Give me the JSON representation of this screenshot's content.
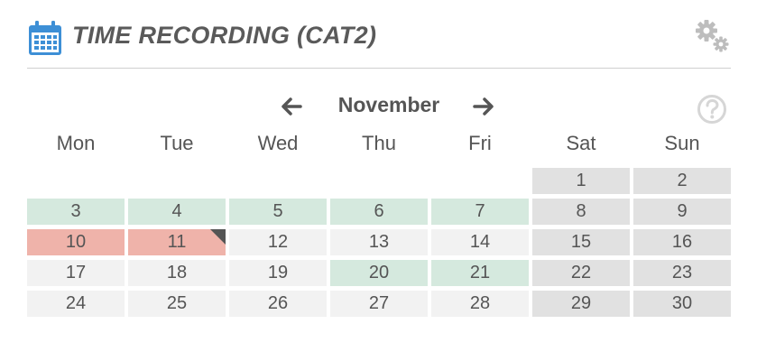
{
  "header": {
    "title": "TIME RECORDING (CAT2)",
    "icon": "calendar-icon",
    "settings_icon": "gear-icon",
    "accent": "#3d8fd6"
  },
  "nav": {
    "month": "November",
    "prev_icon": "arrow-left-icon",
    "next_icon": "arrow-right-icon",
    "help_icon": "help-icon"
  },
  "weekdays": [
    "Mon",
    "Tue",
    "Wed",
    "Thu",
    "Fri",
    "Sat",
    "Sun"
  ],
  "status_colors": {
    "recorded": "#d5e9de",
    "missing": "#efb3aa",
    "workday": "#f2f2f2",
    "weekend": "#e1e1e1"
  },
  "weeks": [
    [
      {
        "day": "",
        "status": "empty"
      },
      {
        "day": "",
        "status": "empty"
      },
      {
        "day": "",
        "status": "empty"
      },
      {
        "day": "",
        "status": "empty"
      },
      {
        "day": "",
        "status": "empty"
      },
      {
        "day": "1",
        "status": "weekend"
      },
      {
        "day": "2",
        "status": "weekend"
      }
    ],
    [
      {
        "day": "3",
        "status": "recorded"
      },
      {
        "day": "4",
        "status": "recorded"
      },
      {
        "day": "5",
        "status": "recorded"
      },
      {
        "day": "6",
        "status": "recorded"
      },
      {
        "day": "7",
        "status": "recorded"
      },
      {
        "day": "8",
        "status": "weekend"
      },
      {
        "day": "9",
        "status": "weekend"
      }
    ],
    [
      {
        "day": "10",
        "status": "missing"
      },
      {
        "day": "11",
        "status": "missing",
        "marker": "corner-flag"
      },
      {
        "day": "12",
        "status": "workday"
      },
      {
        "day": "13",
        "status": "workday"
      },
      {
        "day": "14",
        "status": "workday"
      },
      {
        "day": "15",
        "status": "weekend"
      },
      {
        "day": "16",
        "status": "weekend"
      }
    ],
    [
      {
        "day": "17",
        "status": "workday"
      },
      {
        "day": "18",
        "status": "workday"
      },
      {
        "day": "19",
        "status": "workday"
      },
      {
        "day": "20",
        "status": "recorded"
      },
      {
        "day": "21",
        "status": "recorded"
      },
      {
        "day": "22",
        "status": "weekend"
      },
      {
        "day": "23",
        "status": "weekend"
      }
    ],
    [
      {
        "day": "24",
        "status": "workday"
      },
      {
        "day": "25",
        "status": "workday"
      },
      {
        "day": "26",
        "status": "workday"
      },
      {
        "day": "27",
        "status": "workday"
      },
      {
        "day": "28",
        "status": "workday"
      },
      {
        "day": "29",
        "status": "weekend"
      },
      {
        "day": "30",
        "status": "weekend"
      }
    ]
  ]
}
